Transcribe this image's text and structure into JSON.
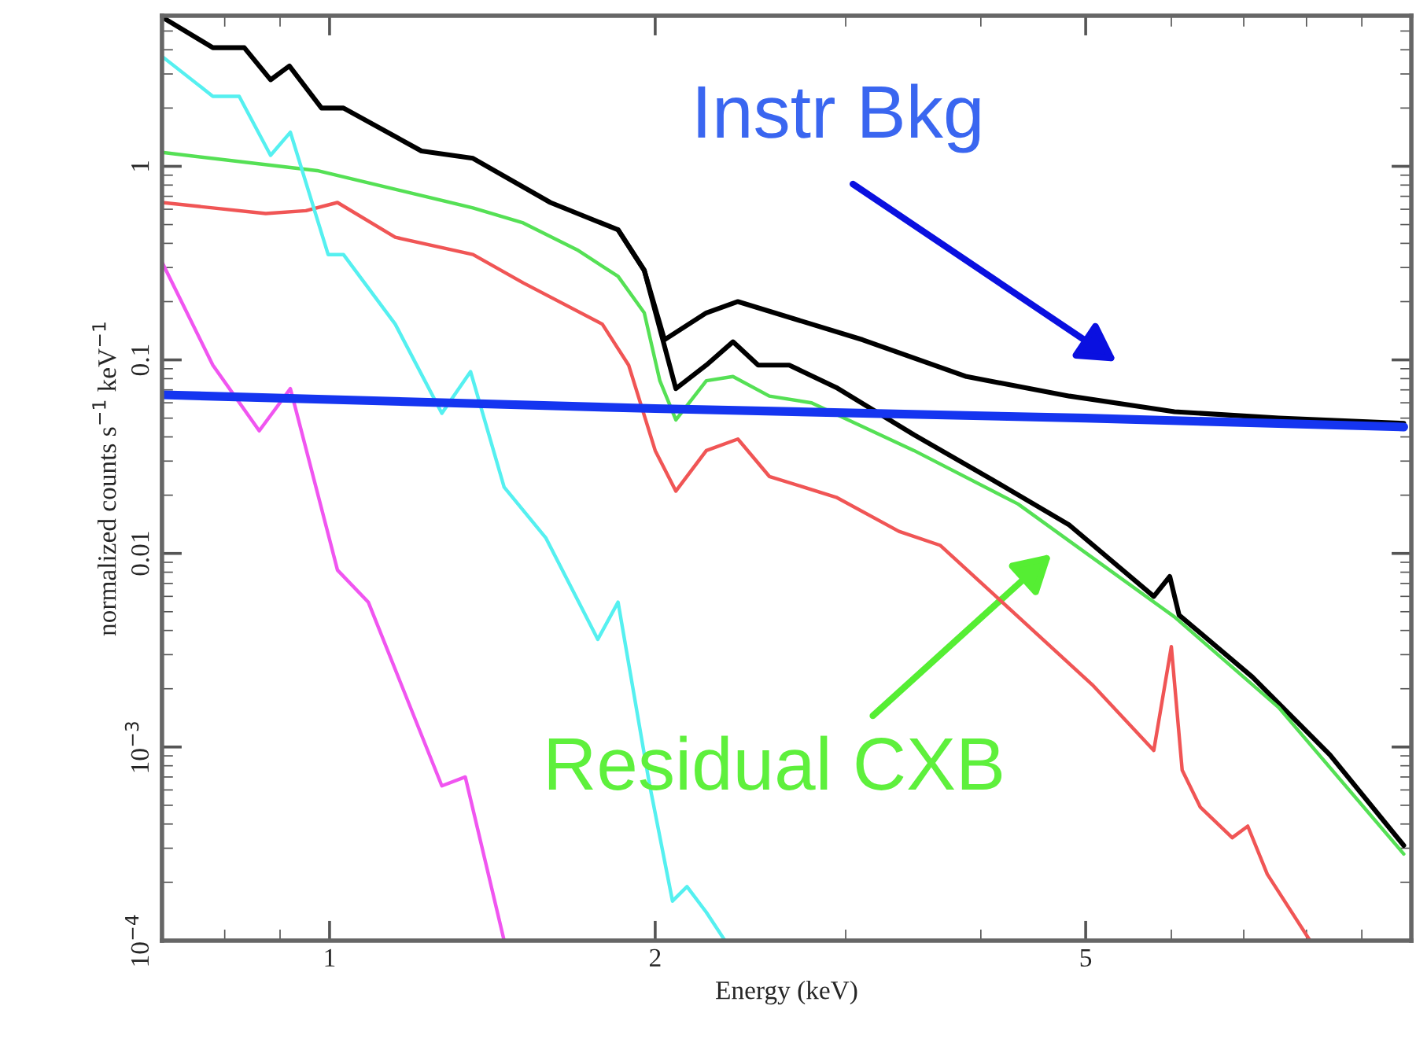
{
  "chart_data": {
    "type": "line",
    "xlabel": "Energy (keV)",
    "ylabel": "normalized counts s$^{−1}$ keV$^{−1}$",
    "log": "xy",
    "xlim": [
      0.7,
      10
    ],
    "ylim": [
      0.0001,
      6
    ],
    "xticks": [
      1,
      2,
      5
    ],
    "yticks": [
      {
        "value": 0.0001,
        "label": "10$^{−4}$"
      },
      {
        "value": 0.001,
        "label": "10$^{−3}$"
      },
      0.01,
      0.1,
      1
    ],
    "series": [
      {
        "color": "#000000",
        "x": [
          0.7,
          0.78,
          0.834,
          0.882,
          0.918,
          0.983,
          1.03,
          1.216,
          1.357,
          1.6,
          1.848,
          1.954,
          2.04,
          2.23,
          2.385,
          3.11,
          3.88,
          4.83,
          6.04,
          7.54,
          9.84
        ],
        "values": [
          5.9,
          4.1,
          4.1,
          2.8,
          3.3,
          2.0,
          2.0,
          1.2,
          1.1,
          0.65,
          0.47,
          0.29,
          0.127,
          0.175,
          0.2,
          0.127,
          0.082,
          0.065,
          0.054,
          0.05,
          0.047
        ]
      },
      {
        "color": "#000000",
        "x": [
          1.848,
          1.954,
          2.09,
          2.23,
          2.36,
          2.49,
          2.66,
          2.94,
          3.47,
          4.1,
          4.83,
          5.78,
          5.98,
          6.1,
          7.13,
          8.41,
          9.84
        ],
        "values": [
          0.47,
          0.29,
          0.071,
          0.094,
          0.124,
          0.094,
          0.094,
          0.072,
          0.041,
          0.024,
          0.014,
          0.006,
          0.0076,
          0.0048,
          0.0023,
          0.00091,
          0.00031
        ]
      },
      {
        "color": "#55e055",
        "x": [
          0.7,
          0.974,
          1.357,
          1.51,
          1.694,
          1.848,
          1.954,
          2.02,
          2.09,
          2.23,
          2.36,
          2.55,
          2.79,
          3.47,
          4.33,
          6.04,
          7.54,
          9.84
        ],
        "values": [
          1.18,
          0.95,
          0.61,
          0.51,
          0.37,
          0.27,
          0.175,
          0.078,
          0.049,
          0.078,
          0.082,
          0.065,
          0.06,
          0.034,
          0.018,
          0.0047,
          0.0016,
          0.00028
        ]
      },
      {
        "color": "#f05555",
        "x": [
          0.7,
          0.873,
          0.951,
          1.017,
          1.15,
          1.357,
          1.51,
          1.787,
          1.89,
          2.0,
          2.09,
          2.23,
          2.385,
          2.55,
          2.94,
          3.36,
          3.67,
          5.07,
          5.78,
          6.0,
          6.14,
          6.38,
          6.83,
          7.06,
          7.36,
          8.06
        ],
        "values": [
          0.65,
          0.57,
          0.59,
          0.65,
          0.43,
          0.35,
          0.25,
          0.153,
          0.094,
          0.034,
          0.021,
          0.034,
          0.039,
          0.025,
          0.0195,
          0.013,
          0.011,
          0.0021,
          0.00096,
          0.0033,
          0.00076,
          0.00049,
          0.00034,
          0.00039,
          0.00022,
          0.0001
        ]
      },
      {
        "color": "#55f0f0",
        "x": [
          0.7,
          0.78,
          0.825,
          0.882,
          0.92,
          0.997,
          1.03,
          1.15,
          1.27,
          1.35,
          1.45,
          1.585,
          1.77,
          1.848,
          1.974,
          2.075,
          2.14,
          2.23,
          2.32
        ],
        "values": [
          3.7,
          2.3,
          2.3,
          1.14,
          1.5,
          0.35,
          0.35,
          0.153,
          0.053,
          0.087,
          0.022,
          0.012,
          0.0036,
          0.0056,
          0.00066,
          0.00016,
          0.00019,
          0.00014,
          0.0001
        ]
      },
      {
        "color": "#f055f0",
        "x": [
          0.7,
          0.78,
          0.861,
          0.92,
          0.997,
          1.017,
          1.086,
          1.27,
          1.335,
          1.45
        ],
        "values": [
          0.32,
          0.094,
          0.043,
          0.071,
          0.0126,
          0.0082,
          0.0056,
          0.00063,
          0.0007,
          0.0001
        ]
      },
      {
        "color": "#1535f0",
        "x": [
          0.7,
          2.0,
          5.0,
          9.84
        ],
        "values": [
          0.066,
          0.056,
          0.05,
          0.045
        ]
      }
    ],
    "annotations": [
      "Instr Bkg",
      "Residual CXB"
    ]
  }
}
